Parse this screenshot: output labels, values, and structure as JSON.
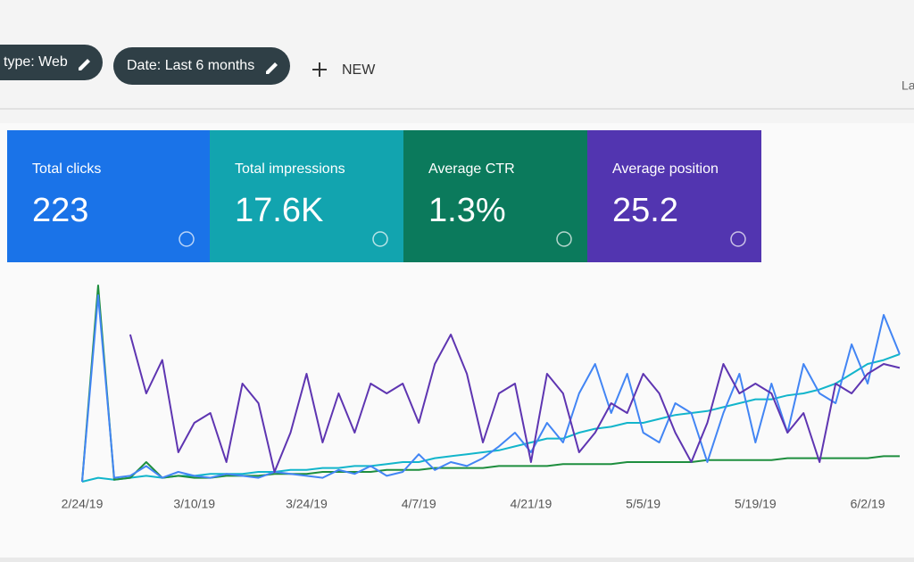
{
  "toolbar": {
    "chips": [
      "type: Web",
      "Date: Last 6 months"
    ],
    "new_button": "NEW",
    "right_text": "La"
  },
  "cards": [
    {
      "label": "Total clicks",
      "value": "223",
      "color": "#1a73e8"
    },
    {
      "label": "Total impressions",
      "value": "17.6K",
      "color": "#12a4af"
    },
    {
      "label": "Average CTR",
      "value": "1.3%",
      "color": "#0b7a5c"
    },
    {
      "label": "Average position",
      "value": "25.2",
      "color": "#5235b0"
    }
  ],
  "chart_data": {
    "type": "line",
    "ylim": [
      0,
      100
    ],
    "categories": [
      "2/24/19",
      null,
      null,
      null,
      null,
      null,
      null,
      "3/10/19",
      null,
      null,
      null,
      null,
      null,
      null,
      "3/24/19",
      null,
      null,
      null,
      null,
      null,
      null,
      "4/7/19",
      null,
      null,
      null,
      null,
      null,
      null,
      "4/21/19",
      null,
      null,
      null,
      null,
      null,
      null,
      "5/5/19",
      null,
      null,
      null,
      null,
      null,
      null,
      "5/19/19",
      null,
      null,
      null,
      null,
      null,
      null,
      "6/2/19",
      null,
      null
    ],
    "series": [
      {
        "color": "#12b5cb",
        "values": [
          0,
          2,
          1,
          2,
          3,
          2,
          3,
          3,
          4,
          4,
          4,
          5,
          5,
          6,
          6,
          7,
          7,
          8,
          8,
          9,
          10,
          10,
          12,
          13,
          14,
          15,
          16,
          18,
          20,
          22,
          22,
          25,
          27,
          28,
          30,
          30,
          32,
          34,
          35,
          36,
          38,
          40,
          42,
          42,
          44,
          45,
          47,
          50,
          55,
          60,
          62,
          65
        ]
      },
      {
        "color": "#1e8e3e",
        "values": [
          0,
          100,
          1,
          2,
          10,
          2,
          3,
          2,
          2,
          3,
          3,
          3,
          4,
          4,
          4,
          5,
          5,
          5,
          5,
          6,
          6,
          6,
          7,
          7,
          7,
          7,
          8,
          8,
          8,
          8,
          9,
          9,
          9,
          9,
          10,
          10,
          10,
          10,
          10,
          11,
          11,
          11,
          11,
          11,
          12,
          12,
          12,
          12,
          12,
          12,
          13,
          13
        ]
      },
      {
        "color": "#4285f4",
        "values": [
          0,
          95,
          2,
          3,
          8,
          2,
          5,
          3,
          2,
          4,
          3,
          2,
          5,
          4,
          3,
          2,
          6,
          4,
          8,
          3,
          5,
          14,
          6,
          10,
          8,
          12,
          18,
          25,
          15,
          30,
          20,
          45,
          60,
          35,
          55,
          25,
          20,
          40,
          35,
          10,
          35,
          55,
          20,
          50,
          25,
          60,
          45,
          40,
          70,
          50,
          85,
          65
        ]
      },
      {
        "color": "#5e35b1",
        "values": [
          null,
          null,
          null,
          75,
          45,
          62,
          15,
          30,
          35,
          10,
          50,
          40,
          5,
          25,
          55,
          20,
          45,
          25,
          50,
          45,
          50,
          30,
          60,
          75,
          55,
          20,
          45,
          50,
          10,
          55,
          45,
          15,
          25,
          40,
          35,
          55,
          45,
          25,
          10,
          30,
          60,
          45,
          50,
          45,
          25,
          35,
          10,
          50,
          45,
          55,
          60,
          58
        ]
      }
    ]
  }
}
